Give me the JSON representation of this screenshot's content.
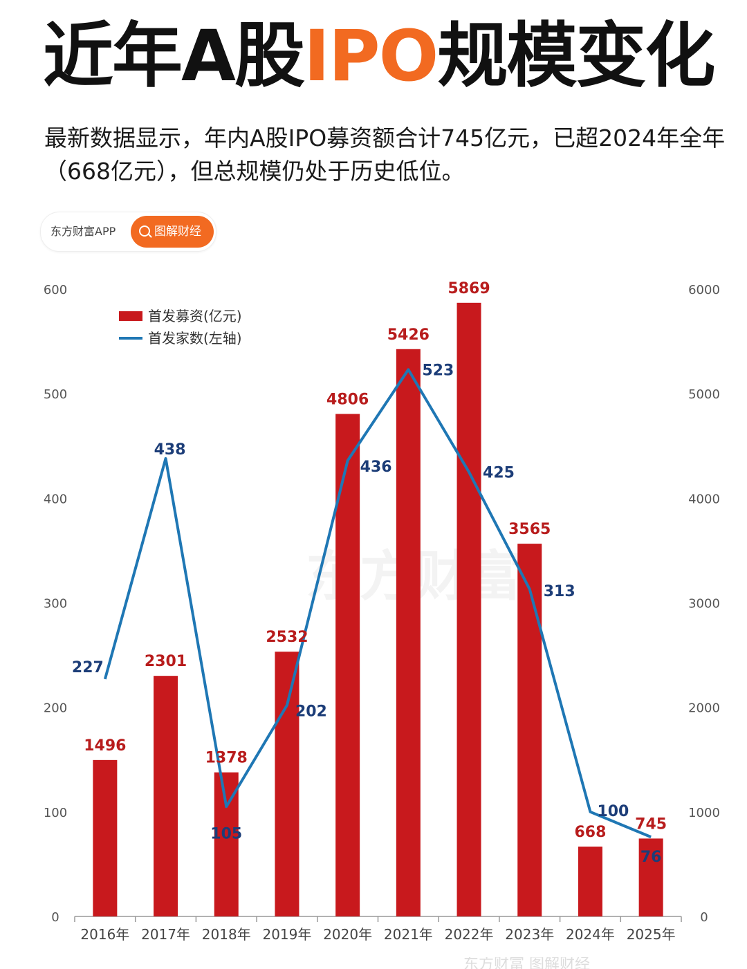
{
  "header": {
    "title_pre": "近年A股",
    "title_accent": "IPO",
    "title_post": "规模变化",
    "subtitle": "最新数据显示，年内A股IPO募资额合计745亿元，已超2024年全年（668亿元），但总规模仍处于历史低位。"
  },
  "source": {
    "app_name": "东方财富APP",
    "button_label": "图解财经"
  },
  "watermark": "东方财富",
  "footer": "东方财富 图解财经",
  "colors": {
    "bar": "#c8191d",
    "line": "#1f77b4",
    "bar_label": "#b81c1c",
    "line_label": "#1c3d78",
    "accent": "#f26a21"
  },
  "chart_data": {
    "type": "bar",
    "categories": [
      "2016年",
      "2017年",
      "2018年",
      "2019年",
      "2020年",
      "2021年",
      "2022年",
      "2023年",
      "2024年",
      "2025年"
    ],
    "series": [
      {
        "name": "首发募资(亿元)",
        "type": "bar",
        "axis": "right",
        "values": [
          1496,
          2301,
          1378,
          2532,
          4806,
          5426,
          5869,
          3565,
          668,
          745
        ]
      },
      {
        "name": "首发家数(左轴)",
        "type": "line",
        "axis": "left",
        "values": [
          227,
          438,
          105,
          202,
          436,
          523,
          425,
          313,
          100,
          76
        ]
      }
    ],
    "left_axis": {
      "ticks": [
        "0",
        "100",
        "200",
        "300",
        "400",
        "500",
        "600"
      ],
      "ylim": [
        0,
        600
      ]
    },
    "right_axis": {
      "ticks": [
        "0",
        "1000",
        "2000",
        "3000",
        "4000",
        "5000",
        "6000"
      ],
      "ylim": [
        0,
        6000
      ]
    },
    "legend_position": "top-left",
    "grid": false
  }
}
